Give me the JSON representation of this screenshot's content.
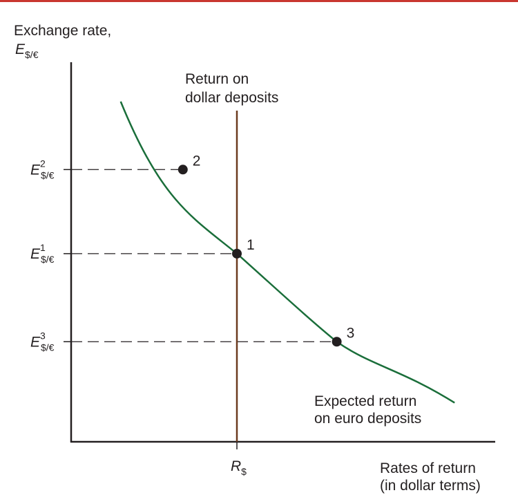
{
  "colors": {
    "top_rule": "#c9362f",
    "axis": "#231f20",
    "curve": "#1a6e3a",
    "dollar_line": "#6b3a1f",
    "dash": "#231f20",
    "point": "#231f20"
  },
  "chart_data": {
    "type": "line",
    "y_axis": {
      "label_line1": "Exchange rate,",
      "label_symbol": "E",
      "label_subscript": "$/€"
    },
    "x_axis": {
      "label_line1": "Rates of return",
      "label_line2": "(in dollar terms)",
      "tick_symbol": "R",
      "tick_subscript": "$"
    },
    "dollar_return_line": {
      "label_line1": "Return on",
      "label_line2": "dollar deposits"
    },
    "euro_return_curve": {
      "label_line1": "Expected return",
      "label_line2": "on euro deposits"
    },
    "points": [
      {
        "id": "2",
        "sup": "2",
        "x": -0.33,
        "y": 0.68
      },
      {
        "id": "1",
        "sup": "1",
        "x": 0.0,
        "y": 0.47
      },
      {
        "id": "3",
        "sup": "3",
        "x": 0.61,
        "y": 0.25
      }
    ],
    "y_tick_symbol": "E",
    "y_tick_subscript": "$/€",
    "grid": false
  }
}
